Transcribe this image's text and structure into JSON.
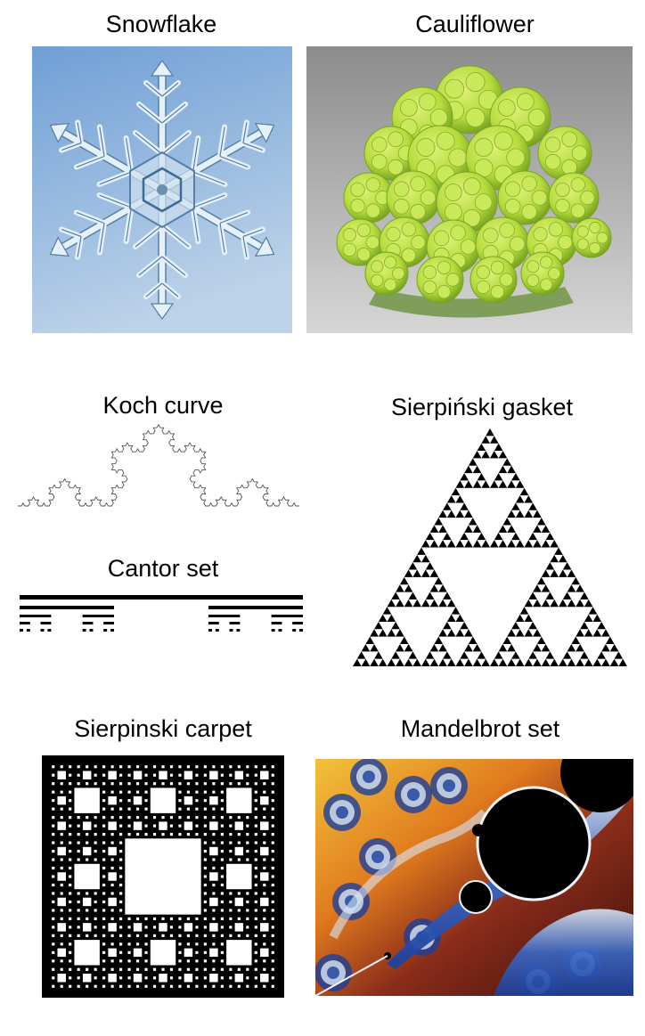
{
  "labels": {
    "snowflake": "Snowflake",
    "cauliflower": "Cauliflower",
    "koch": "Koch curve",
    "gasket": "Sierpiński gasket",
    "cantor": "Cantor set",
    "carpet": "Sierpinski carpet",
    "mandelbrot": "Mandelbrot set"
  },
  "colors": {
    "snow_bg_top": "#6f9fd6",
    "snow_bg_bottom": "#bcd2e8",
    "crystal": "#e6f0f8",
    "crystal_edge": "#557fa8",
    "cauli_green": "#b5dc3c",
    "cauli_dark": "#6e9a1c",
    "cauli_bg": "#9a9a9a",
    "ink": "#000000",
    "mandel_orange": "#e07a1e",
    "mandel_blue": "#1c3f9c",
    "mandel_light": "#d8e6f4"
  },
  "fractals": {
    "koch_iterations": 4,
    "cantor_levels": 5,
    "gasket_depth": 5,
    "carpet_depth": 4
  }
}
